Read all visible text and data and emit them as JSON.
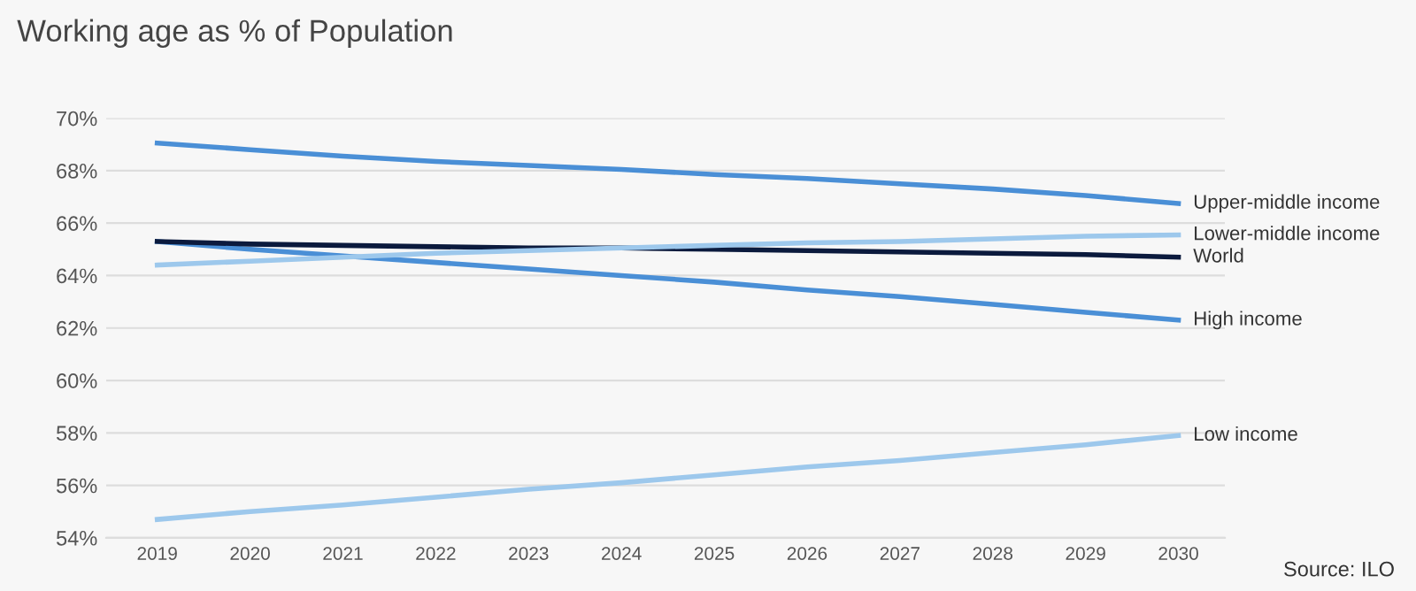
{
  "chart_data": {
    "type": "line",
    "title": "Working age as % of Population",
    "categories": [
      "2019",
      "2020",
      "2021",
      "2022",
      "2023",
      "2024",
      "2025",
      "2026",
      "2027",
      "2028",
      "2029",
      "2030"
    ],
    "series": [
      {
        "name": "Upper-middle income",
        "color": "#4a8fd6",
        "values": [
          69.05,
          68.8,
          68.55,
          68.35,
          68.2,
          68.05,
          67.85,
          67.7,
          67.5,
          67.3,
          67.05,
          66.75
        ]
      },
      {
        "name": "Lower-middle income",
        "color": "#9dc8ec",
        "values": [
          64.4,
          64.55,
          64.7,
          64.85,
          64.95,
          65.05,
          65.15,
          65.25,
          65.3,
          65.4,
          65.5,
          65.55
        ]
      },
      {
        "name": "World",
        "color": "#0b1a3d",
        "values": [
          65.3,
          65.2,
          65.15,
          65.1,
          65.05,
          65.05,
          65.0,
          64.95,
          64.9,
          64.85,
          64.8,
          64.7
        ]
      },
      {
        "name": "High income",
        "color": "#4a8fd6",
        "values": [
          65.3,
          65.0,
          64.75,
          64.5,
          64.25,
          64.0,
          63.75,
          63.45,
          63.2,
          62.9,
          62.6,
          62.3
        ]
      },
      {
        "name": "Low income",
        "color": "#9dc8ec",
        "values": [
          54.7,
          55.0,
          55.25,
          55.55,
          55.85,
          56.1,
          56.4,
          56.7,
          56.95,
          57.25,
          57.55,
          57.9
        ]
      }
    ],
    "ylim": [
      54,
      70
    ],
    "yticks": [
      {
        "value": 54,
        "label": "54%"
      },
      {
        "value": 56,
        "label": "56%"
      },
      {
        "value": 58,
        "label": "58%"
      },
      {
        "value": 60,
        "label": "60%"
      },
      {
        "value": 62,
        "label": "62%"
      },
      {
        "value": 64,
        "label": "64%"
      },
      {
        "value": 66,
        "label": "66%"
      },
      {
        "value": 68,
        "label": "68%"
      },
      {
        "value": 70,
        "label": "70%"
      }
    ],
    "grid": "y",
    "legend": false,
    "marker": "none",
    "line_style": "solid",
    "annotations": [
      "Source: ILO"
    ]
  }
}
